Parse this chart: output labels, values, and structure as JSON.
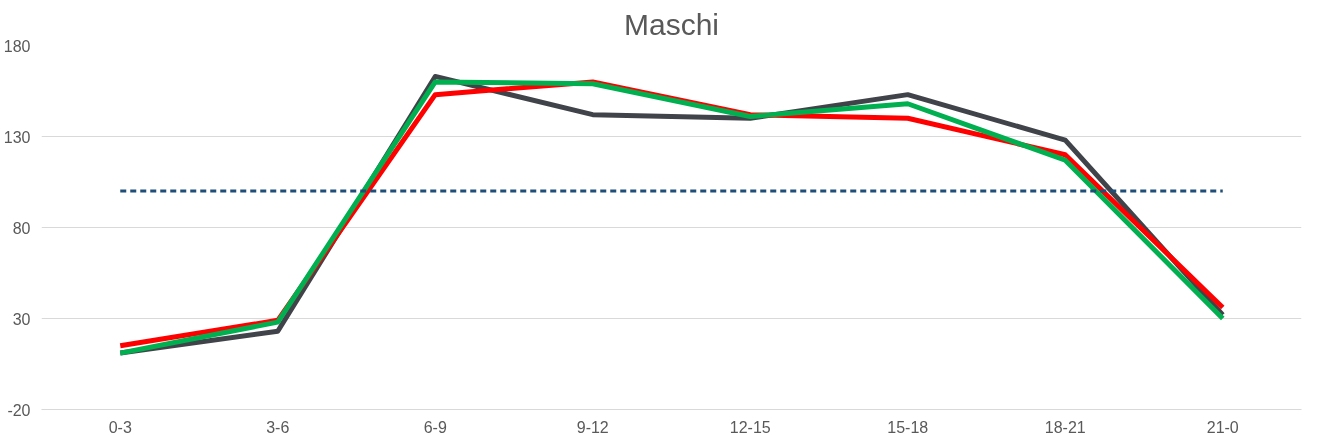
{
  "chart_data": {
    "type": "line",
    "title": "Maschi",
    "categories": [
      "0-3",
      "3-6",
      "6-9",
      "9-12",
      "12-15",
      "15-18",
      "18-21",
      "21-0"
    ],
    "series": [
      {
        "color": "#404349",
        "values": [
          11,
          23,
          163,
          142,
          140,
          153,
          128,
          32
        ]
      },
      {
        "color": "#ff0000",
        "values": [
          15,
          29,
          153,
          160,
          142,
          140,
          120,
          36
        ]
      },
      {
        "color": "#00b050",
        "values": [
          11,
          28,
          160,
          159,
          141,
          148,
          117,
          30
        ]
      },
      {
        "color": "#1f4e79",
        "values": [
          100,
          100,
          100,
          100,
          100,
          100,
          100,
          100
        ],
        "line_style": "dashed"
      }
    ],
    "ylim": [
      -20,
      180
    ],
    "yticks": [
      -20,
      30,
      80,
      130,
      180
    ],
    "grid": "y",
    "marker": "none",
    "line_style": "solid"
  }
}
